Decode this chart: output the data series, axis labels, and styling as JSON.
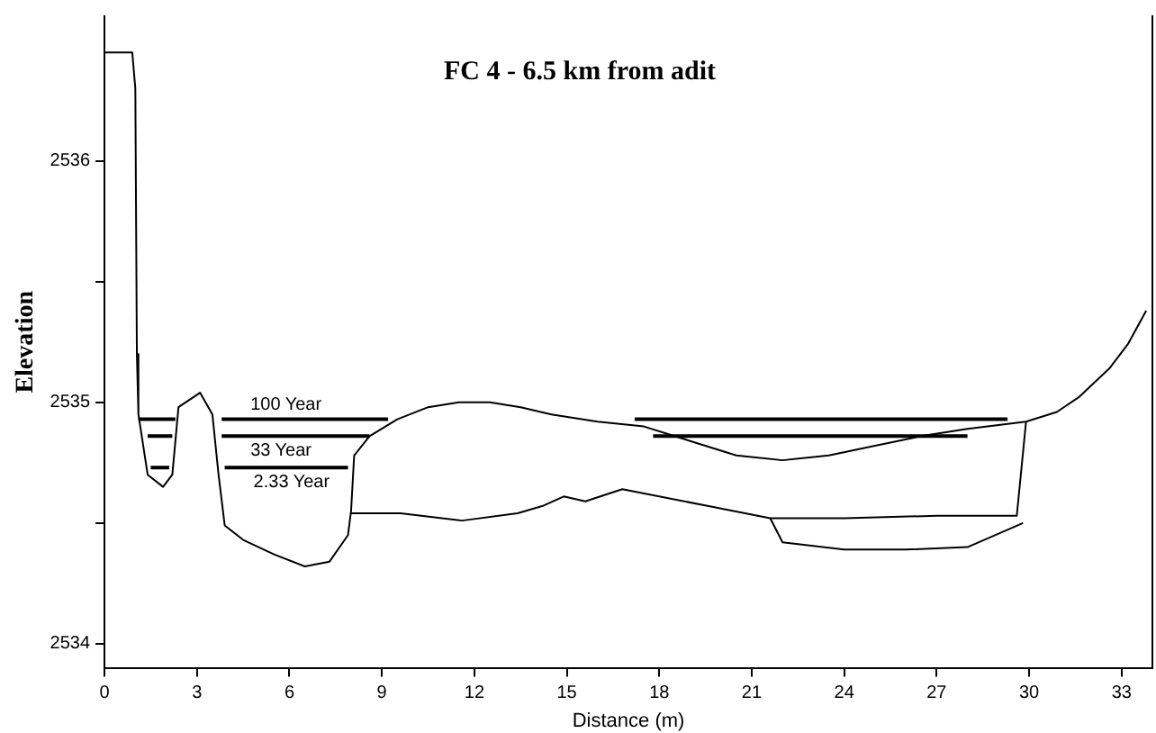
{
  "chart_data": {
    "type": "line",
    "title": "FC 4 - 6.5 km from adit",
    "xlabel": "Distance (m)",
    "ylabel": "Elevation",
    "xlim": [
      0,
      34
    ],
    "xticks": [
      0,
      3,
      6,
      9,
      12,
      15,
      18,
      21,
      24,
      27,
      30,
      33
    ],
    "ylim": [
      2533.9,
      2536.6
    ],
    "yticks": [
      2534,
      {
        "value": 2534.5,
        "label": null
      },
      2535,
      {
        "value": 2535.5,
        "label": null
      },
      2536
    ],
    "grid": false,
    "legend": false,
    "marker": "none",
    "line_style": "solid",
    "series": [
      {
        "color": "#000000",
        "x": [
          0,
          0.9,
          1.0,
          1.05,
          1.1,
          1.4,
          1.9,
          2.2,
          2.4,
          3.1,
          3.5,
          3.7,
          3.9,
          4.5,
          5.5,
          6.5,
          7.3,
          7.9,
          8.0,
          8.1,
          8.6,
          9.5,
          10.5,
          11.5,
          12.5,
          13.5,
          14.5,
          16,
          17.5,
          19,
          20.5,
          22,
          23.5,
          25,
          26.5,
          28,
          29.9,
          30.9,
          31.6,
          32.6,
          33.2,
          33.8
        ],
        "values": [
          2536.45,
          2536.45,
          2536.3,
          2535.2,
          2534.95,
          2534.7,
          2534.65,
          2534.7,
          2534.98,
          2535.04,
          2534.95,
          2534.7,
          2534.49,
          2534.43,
          2534.37,
          2534.32,
          2534.34,
          2534.45,
          2534.55,
          2534.78,
          2534.86,
          2534.93,
          2534.98,
          2535.0,
          2535.0,
          2534.98,
          2534.95,
          2534.92,
          2534.9,
          2534.84,
          2534.78,
          2534.76,
          2534.78,
          2534.82,
          2534.86,
          2534.89,
          2534.92,
          2534.96,
          2535.02,
          2535.14,
          2535.24,
          2535.38
        ]
      },
      {
        "color": "#000000",
        "x": [
          8.0,
          9.6,
          11.6,
          13.4,
          14.2,
          14.9,
          15.6,
          16.8,
          19.6,
          21.6,
          24,
          27,
          29.6,
          29.9
        ],
        "values": [
          2534.54,
          2534.54,
          2534.51,
          2534.54,
          2534.57,
          2534.61,
          2534.59,
          2534.64,
          2534.57,
          2534.52,
          2534.52,
          2534.53,
          2534.53,
          2534.92
        ]
      },
      {
        "color": "#000000",
        "x": [
          21.6,
          22,
          24,
          26,
          28,
          29.8
        ],
        "values": [
          2534.52,
          2534.42,
          2534.39,
          2534.39,
          2534.4,
          2534.5
        ]
      },
      {
        "name": "100 Year",
        "color": "#000000",
        "x": [
          1.1,
          2.3,
          2.35,
          3.8,
          9.2,
          9.25,
          17.2,
          29.3
        ],
        "values": [
          2534.93,
          2534.93,
          null,
          2534.93,
          2534.93,
          null,
          2534.93,
          2534.93
        ]
      },
      {
        "name": "33 Year",
        "color": "#000000",
        "x": [
          1.4,
          2.2,
          2.25,
          3.8,
          8.6,
          8.65,
          17.8,
          28.0
        ],
        "values": [
          2534.86,
          2534.86,
          null,
          2534.86,
          2534.86,
          null,
          2534.86,
          2534.86
        ]
      },
      {
        "name": "2.33 Year",
        "color": "#000000",
        "x": [
          1.5,
          2.1,
          2.15,
          3.9,
          7.9
        ],
        "values": [
          2534.73,
          2534.73,
          null,
          2534.73,
          2534.73
        ]
      }
    ]
  }
}
